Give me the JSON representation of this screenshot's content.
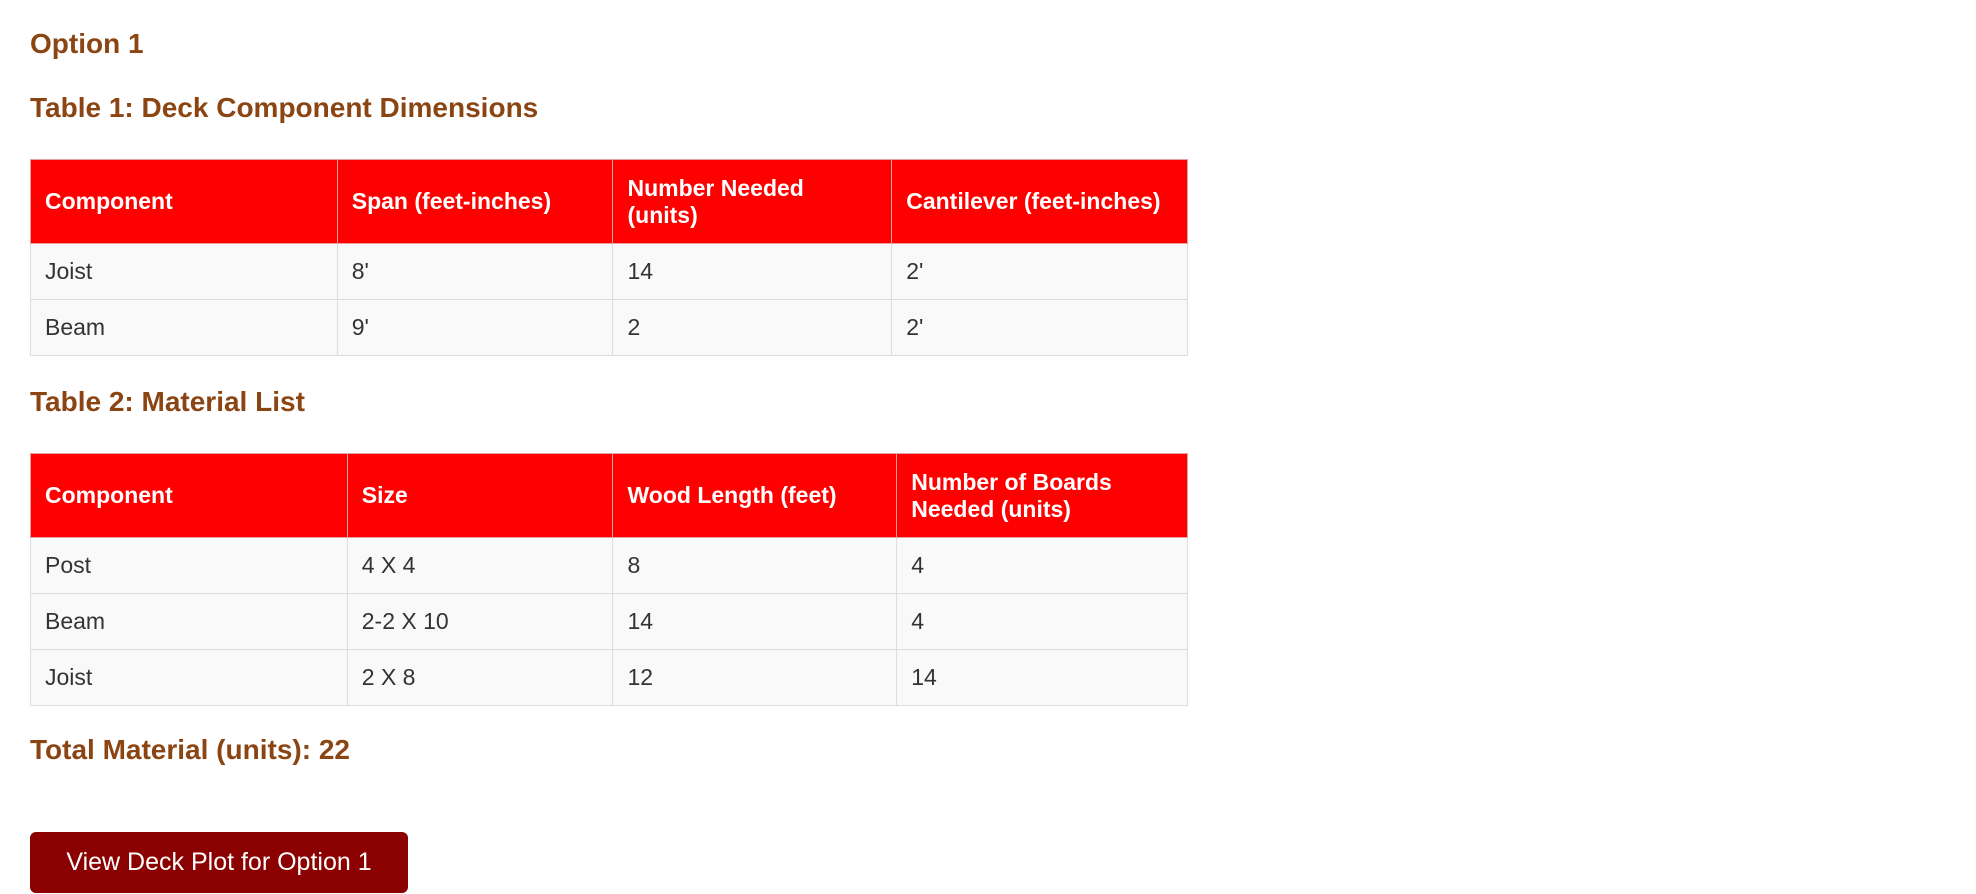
{
  "option_title": "Option 1",
  "table1": {
    "title": "Table 1: Deck Component Dimensions",
    "headers": [
      "Component",
      "Span (feet-inches)",
      "Number Needed (units)",
      "Cantilever (feet-inches)"
    ],
    "rows": [
      [
        "Joist",
        "8'",
        "14",
        "2'"
      ],
      [
        "Beam",
        "9'",
        "2",
        "2'"
      ]
    ]
  },
  "table2": {
    "title": "Table 2: Material List",
    "headers": [
      "Component",
      "Size",
      "Wood Length (feet)",
      "Number of Boards Needed (units)"
    ],
    "rows": [
      [
        "Post",
        "4 X 4",
        "8",
        "4"
      ],
      [
        "Beam",
        "2-2 X 10",
        "14",
        "4"
      ],
      [
        "Joist",
        "2 X 8",
        "12",
        "14"
      ]
    ]
  },
  "total_material": "Total Material (units): 22",
  "button_label": "View Deck Plot for Option 1",
  "colors": {
    "heading": "#8b4513",
    "table_header": "#ff0000",
    "button": "#8b0000"
  }
}
